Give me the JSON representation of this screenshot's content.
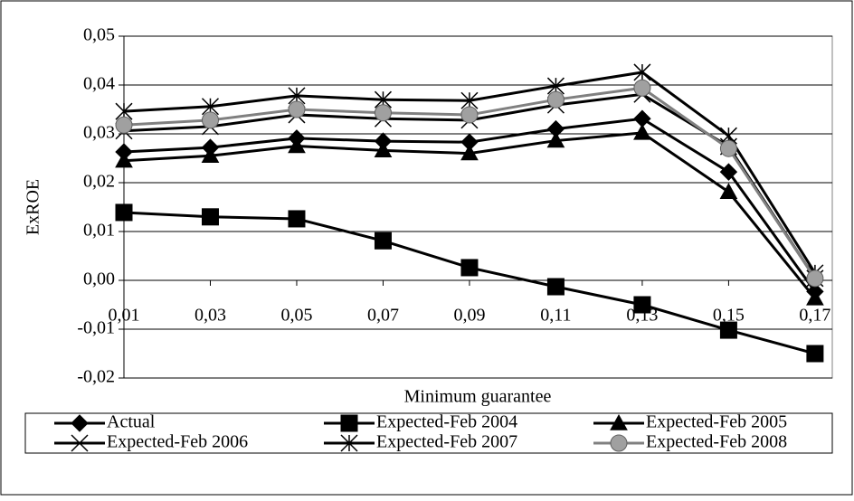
{
  "chart_data": {
    "type": "line",
    "y_label": "ExROE",
    "x_label": "Minimum guarantee",
    "x": [
      0.01,
      0.03,
      0.05,
      0.07,
      0.09,
      0.11,
      0.13,
      0.15,
      0.17
    ],
    "xlim": [
      0.01,
      0.174
    ],
    "xticks": [
      {
        "value": 0.01,
        "label": "0,01"
      },
      {
        "value": 0.03,
        "label": "0,03"
      },
      {
        "value": 0.05,
        "label": "0,05"
      },
      {
        "value": 0.07,
        "label": "0,07"
      },
      {
        "value": 0.09,
        "label": "0,09"
      },
      {
        "value": 0.11,
        "label": "0,11"
      },
      {
        "value": 0.13,
        "label": "0,13"
      },
      {
        "value": 0.15,
        "label": "0,15"
      },
      {
        "value": 0.17,
        "label": "0,17"
      }
    ],
    "ylim": [
      -0.02,
      0.05
    ],
    "yticks": [
      {
        "value": -0.02,
        "label": "-0,02"
      },
      {
        "value": -0.01,
        "label": "-0,01"
      },
      {
        "value": 0,
        "label": "0,00"
      },
      {
        "value": 0.01,
        "label": "0,01"
      },
      {
        "value": 0.02,
        "label": "0,02"
      },
      {
        "value": 0.03,
        "label": "0,03"
      },
      {
        "value": 0.04,
        "label": "0,04"
      },
      {
        "value": 0.05,
        "label": "0,05"
      }
    ],
    "grid": true,
    "series": [
      {
        "name": "Actual",
        "color": "#000000",
        "marker": "diamond",
        "values": [
          0.0263,
          0.0272,
          0.0291,
          0.0285,
          0.0283,
          0.031,
          0.0331,
          0.0222,
          -0.0023
        ]
      },
      {
        "name": "Expected-Feb 2004",
        "color": "#000000",
        "marker": "square",
        "values": [
          0.0139,
          0.013,
          0.0126,
          0.0081,
          0.0026,
          -0.0013,
          -0.005,
          -0.0102,
          -0.015
        ]
      },
      {
        "name": "Expected-Feb 2005",
        "color": "#000000",
        "marker": "triangle",
        "values": [
          0.0245,
          0.0255,
          0.0275,
          0.0266,
          0.026,
          0.0286,
          0.0302,
          0.0181,
          -0.0037
        ]
      },
      {
        "name": "Expected-Feb 2006",
        "color": "#000000",
        "marker": "x",
        "values": [
          0.0306,
          0.0315,
          0.0339,
          0.0331,
          0.0328,
          0.0359,
          0.0381,
          0.0274,
          0.0004
        ]
      },
      {
        "name": "Expected-Feb 2007",
        "color": "#000000",
        "marker": "star",
        "values": [
          0.0346,
          0.0356,
          0.0378,
          0.037,
          0.0368,
          0.0398,
          0.0426,
          0.0296,
          0.0015
        ]
      },
      {
        "name": "Expected-Feb 2008",
        "color": "#808080",
        "marker": "circle",
        "values": [
          0.0318,
          0.0328,
          0.035,
          0.0343,
          0.0339,
          0.037,
          0.0394,
          0.027,
          0.0004
        ]
      }
    ]
  }
}
